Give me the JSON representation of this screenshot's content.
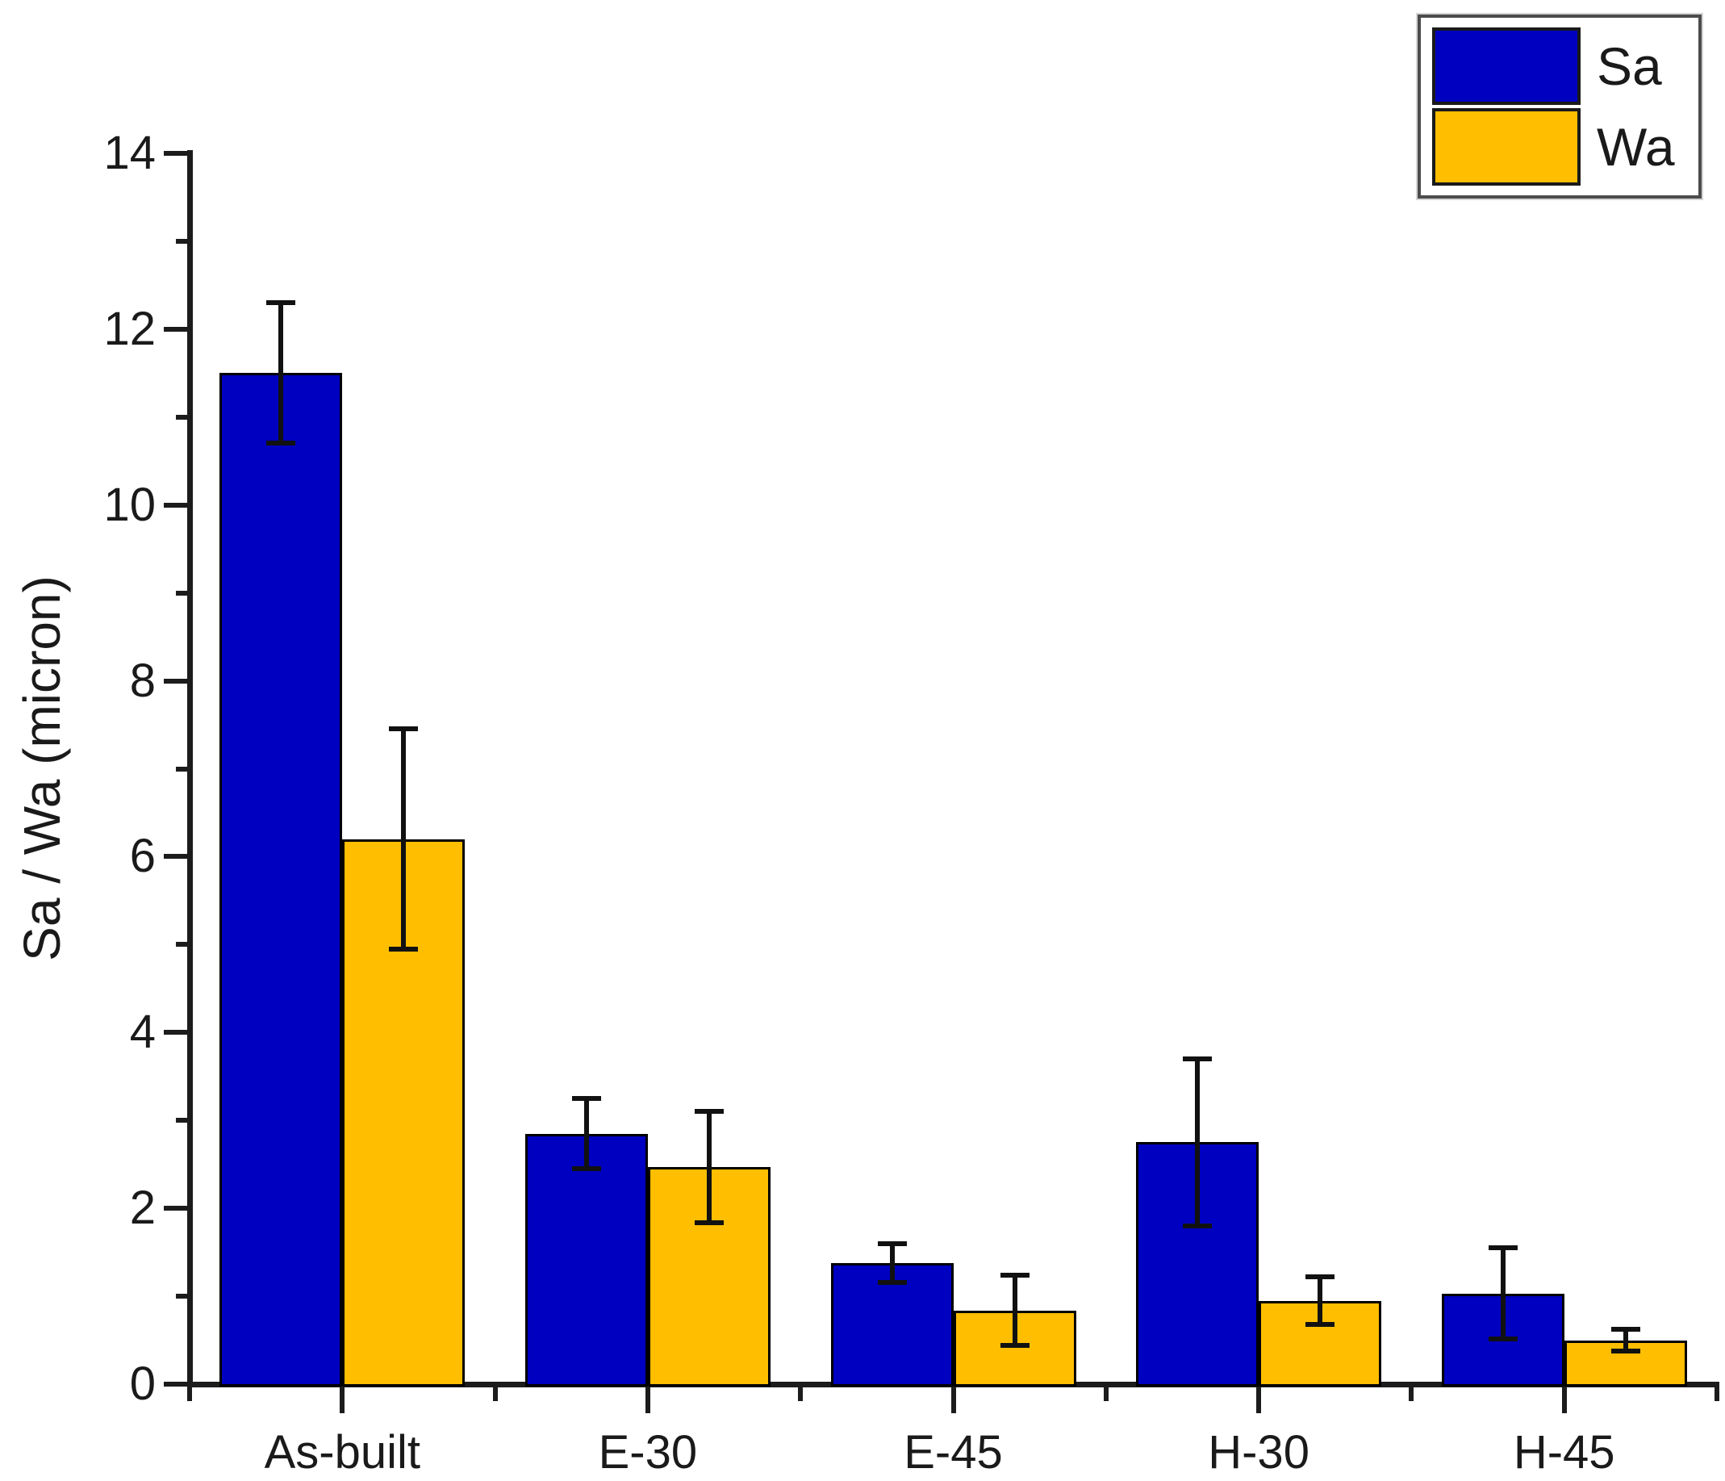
{
  "chart_data": {
    "type": "bar",
    "title": "",
    "categories": [
      "As-built",
      "E-30",
      "E-45",
      "H-30",
      "H-45"
    ],
    "series": [
      {
        "name": "Sa",
        "color": "#0000C0",
        "values": [
          11.5,
          2.85,
          1.38,
          2.75,
          1.03
        ],
        "errors": [
          0.8,
          0.4,
          0.22,
          0.95,
          0.52
        ]
      },
      {
        "name": "Wa",
        "color": "#FFBE00",
        "values": [
          6.2,
          2.47,
          0.84,
          0.95,
          0.5
        ],
        "errors": [
          1.25,
          0.63,
          0.4,
          0.27,
          0.12
        ]
      }
    ],
    "xlabel": "",
    "ylabel": "Sa / Wa (micron)",
    "ylim": [
      0,
      14
    ],
    "y_major_step": 2,
    "y_minor_step": 1,
    "y_tick_labels": [
      "0",
      "2",
      "4",
      "6",
      "8",
      "10",
      "12",
      "14"
    ],
    "grid": false,
    "error_bars": true,
    "legend_position": "top-right"
  },
  "legend": {
    "items": [
      {
        "label": "Sa",
        "color": "#0000C0"
      },
      {
        "label": "Wa",
        "color": "#FFBE00"
      }
    ]
  }
}
